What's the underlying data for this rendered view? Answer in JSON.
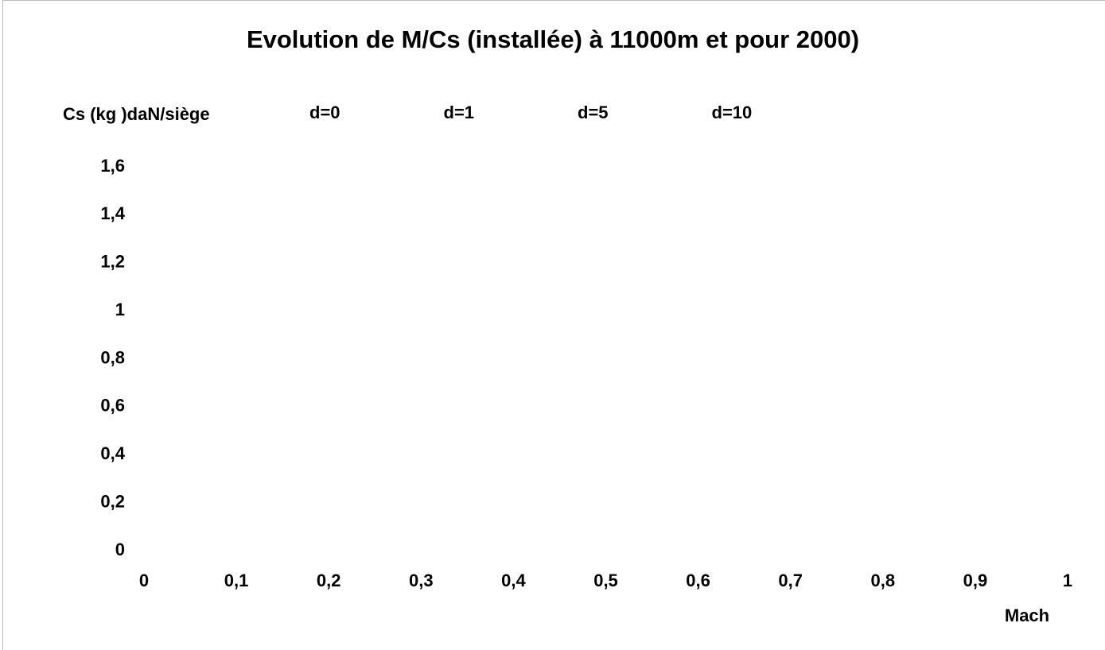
{
  "chart_data": {
    "type": "line",
    "title": "Evolution de M/Cs (installée) à 11000m et pour 2000)",
    "y_label": "Cs (kg )daN/siège",
    "x_label": "Mach",
    "series": [
      {
        "name": "d=0"
      },
      {
        "name": "d=1"
      },
      {
        "name": "d=5"
      },
      {
        "name": "d=10"
      }
    ],
    "legend": "top",
    "xlim": [
      0,
      1
    ],
    "xticks": [
      0,
      {
        "value": 0.1,
        "label": "0,1"
      },
      {
        "value": 0.2,
        "label": "0,2"
      },
      {
        "value": 0.3,
        "label": "0,3"
      },
      {
        "value": 0.4,
        "label": "0,4"
      },
      {
        "value": 0.5,
        "label": "0,5"
      },
      {
        "value": 0.6,
        "label": "0,6"
      },
      {
        "value": 0.7,
        "label": "0,7"
      },
      {
        "value": 0.8,
        "label": "0,8"
      },
      {
        "value": 0.9,
        "label": "0,9"
      },
      1
    ],
    "ylim": [
      0,
      1.6
    ],
    "yticks": [
      0,
      {
        "value": 0.2,
        "label": "0,2"
      },
      {
        "value": 0.4,
        "label": "0,4"
      },
      {
        "value": 0.6,
        "label": "0,6"
      },
      {
        "value": 0.8,
        "label": "0,8"
      },
      1,
      {
        "value": 1.2,
        "label": "1,2"
      },
      {
        "value": 1.4,
        "label": "1,4"
      },
      {
        "value": 1.6,
        "label": "1,6"
      }
    ],
    "grid": false
  }
}
